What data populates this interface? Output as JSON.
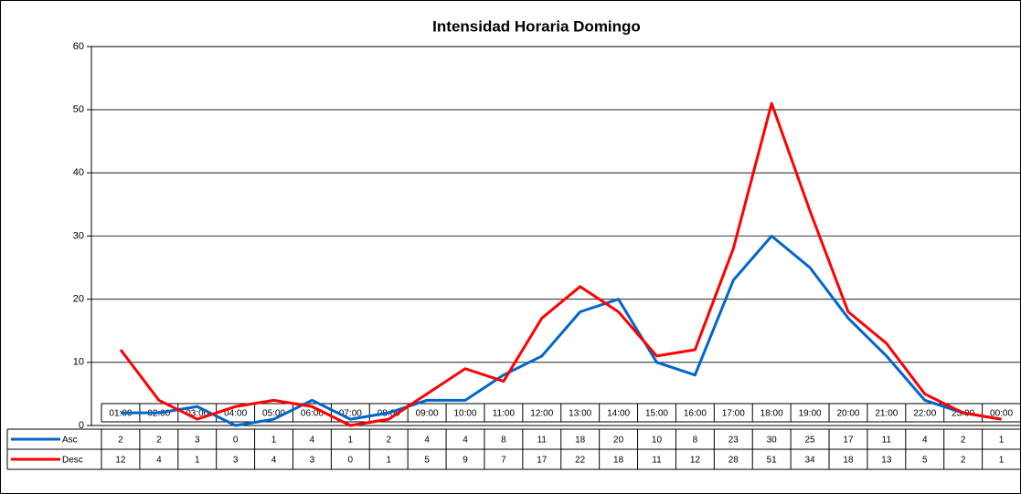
{
  "chart_data": {
    "type": "line",
    "title": "Intensidad Horaria Domingo",
    "categories": [
      "01:00",
      "02:00",
      "03:00",
      "04:00",
      "05:00",
      "06:00",
      "07:00",
      "08:00",
      "09:00",
      "10:00",
      "11:00",
      "12:00",
      "13:00",
      "14:00",
      "15:00",
      "16:00",
      "17:00",
      "18:00",
      "19:00",
      "20:00",
      "21:00",
      "22:00",
      "23:00",
      "00:00"
    ],
    "series": [
      {
        "name": "Asc",
        "color": "#0066cc",
        "values": [
          2,
          2,
          3,
          0,
          1,
          4,
          1,
          2,
          4,
          4,
          8,
          11,
          18,
          20,
          10,
          8,
          23,
          30,
          25,
          17,
          11,
          4,
          2,
          1
        ]
      },
      {
        "name": "Desc",
        "color": "#ff0000",
        "values": [
          12,
          4,
          1,
          3,
          4,
          3,
          0,
          1,
          5,
          9,
          7,
          17,
          22,
          18,
          11,
          12,
          28,
          51,
          34,
          18,
          13,
          5,
          2,
          1
        ]
      }
    ],
    "ylim": [
      0,
      60
    ],
    "yticks": [
      0,
      10,
      20,
      30,
      40,
      50,
      60
    ],
    "grid": true
  }
}
